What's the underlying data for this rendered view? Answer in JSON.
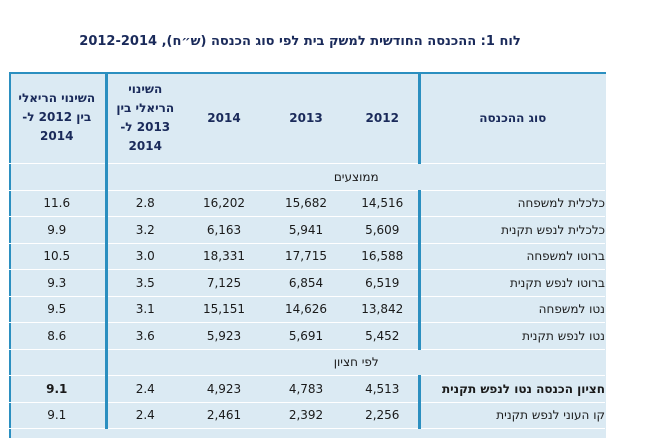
{
  "title": "לוח 1: ההכנסה החודשית למשק בית לפי סוג הכנסה (ש״ח), 2012-2014",
  "headers": {
    "real_change_2012_2014": "השינוי הריאלי בין 2012 ל- 2014",
    "real_change_2013_2014": "השינוי הריאלי בין 2013 ל- 2014",
    "y2014": "2014",
    "y2013": "2013",
    "y2012": "2012",
    "income_type": "סוג ההכנסה"
  },
  "sections": [
    {
      "label": "ממוצעים",
      "rows": [
        {
          "type": "כלכלית למשפחה",
          "v2012": "14,516",
          "v2013": "15,682",
          "v2014": "16,202",
          "ch1314": "2.8",
          "ch1214": "11.6"
        },
        {
          "type": "כלכלית לנפש תקנית",
          "v2012": "5,609",
          "v2013": "5,941",
          "v2014": "6,163",
          "ch1314": "3.2",
          "ch1214": "9.9"
        },
        {
          "type": "ברוטו למשפחה",
          "v2012": "16,588",
          "v2013": "17,715",
          "v2014": "18,331",
          "ch1314": "3.0",
          "ch1214": "10.5"
        },
        {
          "type": "ברוטו לנפש תקנית",
          "v2012": "6,519",
          "v2013": "6,854",
          "v2014": "7,125",
          "ch1314": "3.5",
          "ch1214": "9.3"
        },
        {
          "type": "נטו למשפחה",
          "v2012": "13,842",
          "v2013": "14,626",
          "v2014": "15,151",
          "ch1314": "3.1",
          "ch1214": "9.5"
        },
        {
          "type": "נטו לנפש תקנית",
          "v2012": "5,452",
          "v2013": "5,691",
          "v2014": "5,923",
          "ch1314": "3.6",
          "ch1214": "8.6"
        }
      ]
    },
    {
      "label": "לפי חציון",
      "rows": [
        {
          "type": "חציון הכנסה נטו לנפש תקנית",
          "v2012": "4,513",
          "v2013": "4,783",
          "v2014": "4,923",
          "ch1314": "2.4",
          "ch1214": "9.1",
          "bold": true
        },
        {
          "type": "קו העוני לנפש תקנית",
          "v2012": "2,256",
          "v2013": "2,392",
          "v2014": "2,461",
          "ch1314": "2.4",
          "ch1214": "9.1"
        }
      ]
    }
  ]
}
